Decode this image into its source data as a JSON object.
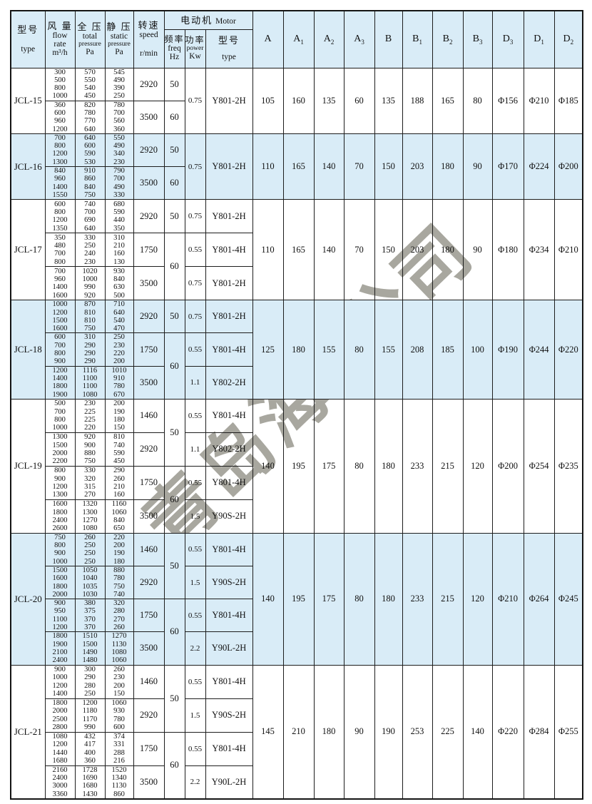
{
  "watermark": {
    "fragments": [
      {
        "text": "青岛海"
      },
      {
        "text": "公司"
      }
    ],
    "color": "#a8a79f"
  },
  "colors": {
    "band": "#d9ecf7",
    "border": "#1d1d1d",
    "watermark": "#a8a79f"
  },
  "table": {
    "header": {
      "col_type": {
        "zh": "型号",
        "en1": "type"
      },
      "col_flow": {
        "zh": "风 量",
        "en1": "flow",
        "en2": "rate",
        "unit": "m³/h"
      },
      "col_total": {
        "zh": "全 压",
        "en1": "total",
        "en2": "pressure",
        "unit": "Pa"
      },
      "col_static": {
        "zh": "静 压",
        "en1": "static",
        "en2": "pressure",
        "unit": "Pa"
      },
      "col_speed": {
        "zh": "转速",
        "en1": "speed",
        "unit": "r/min"
      },
      "motor_group": {
        "zh": "电动机",
        "en": "Motor"
      },
      "col_freq": {
        "zh": "频率",
        "en1": "freq",
        "unit": "Hz"
      },
      "col_power": {
        "zh": "功率",
        "en1": "power",
        "unit": "Kw"
      },
      "col_motor_type": {
        "zh": "型号",
        "en1": "type"
      },
      "dims": [
        {
          "b": "A",
          "s": ""
        },
        {
          "b": "A",
          "s": "1"
        },
        {
          "b": "A",
          "s": "2"
        },
        {
          "b": "A",
          "s": "3"
        },
        {
          "b": "B",
          "s": ""
        },
        {
          "b": "B",
          "s": "1"
        },
        {
          "b": "B",
          "s": "2"
        },
        {
          "b": "B",
          "s": "3"
        },
        {
          "b": "D",
          "s": "3"
        },
        {
          "b": "D",
          "s": "1"
        },
        {
          "b": "D",
          "s": "2"
        }
      ]
    },
    "rows": [
      {
        "model": "JCL-15",
        "shaded": false,
        "sub_blocks": [
          {
            "flow": [
              "300",
              "500",
              "800",
              "1000"
            ],
            "total": [
              "570",
              "550",
              "540",
              "450"
            ],
            "static": [
              "545",
              "490",
              "390",
              "250"
            ],
            "speed": "2920"
          },
          {
            "flow": [
              "360",
              "600",
              "960",
              "1200"
            ],
            "total": [
              "820",
              "780",
              "770",
              "640"
            ],
            "static": [
              "780",
              "700",
              "560",
              "360"
            ],
            "speed": "3500"
          }
        ],
        "freq": [
          {
            "value": "50",
            "span": 1
          },
          {
            "value": "60",
            "span": 1
          }
        ],
        "power": [
          {
            "value": "0.75",
            "span": 2
          }
        ],
        "motor": [
          {
            "value": "Y801-2H",
            "span": 2
          }
        ],
        "dims": [
          "105",
          "160",
          "135",
          "60",
          "135",
          "188",
          "165",
          "80",
          "Φ156",
          "Φ210",
          "Φ185"
        ]
      },
      {
        "model": "JCL-16",
        "shaded": true,
        "sub_blocks": [
          {
            "flow": [
              "700",
              "800",
              "1200",
              "1300"
            ],
            "total": [
              "640",
              "600",
              "590",
              "530"
            ],
            "static": [
              "550",
              "490",
              "340",
              "230"
            ],
            "speed": "2920"
          },
          {
            "flow": [
              "840",
              "960",
              "1400",
              "1550"
            ],
            "total": [
              "910",
              "860",
              "840",
              "750"
            ],
            "static": [
              "790",
              "700",
              "490",
              "330"
            ],
            "speed": "3500"
          }
        ],
        "freq": [
          {
            "value": "50",
            "span": 1
          },
          {
            "value": "60",
            "span": 1
          }
        ],
        "power": [
          {
            "value": "0.75",
            "span": 2
          }
        ],
        "motor": [
          {
            "value": "Y801-2H",
            "span": 2
          }
        ],
        "dims": [
          "110",
          "165",
          "140",
          "70",
          "150",
          "203",
          "180",
          "90",
          "Φ170",
          "Φ224",
          "Φ200"
        ]
      },
      {
        "model": "JCL-17",
        "shaded": false,
        "sub_blocks": [
          {
            "flow": [
              "600",
              "800",
              "1200",
              "1350"
            ],
            "total": [
              "740",
              "700",
              "690",
              "640"
            ],
            "static": [
              "680",
              "590",
              "440",
              "350"
            ],
            "speed": "2920"
          },
          {
            "flow": [
              "350",
              "480",
              "700",
              "800"
            ],
            "total": [
              "330",
              "250",
              "240",
              "230"
            ],
            "static": [
              "310",
              "210",
              "160",
              "130"
            ],
            "speed": "1750"
          },
          {
            "flow": [
              "700",
              "960",
              "1400",
              "1600"
            ],
            "total": [
              "1020",
              "1000",
              "990",
              "920"
            ],
            "static": [
              "930",
              "840",
              "630",
              "500"
            ],
            "speed": "3500"
          }
        ],
        "freq": [
          {
            "value": "50",
            "span": 1
          },
          {
            "value": "60",
            "span": 2
          }
        ],
        "power": [
          {
            "value": "0.75",
            "span": 1
          },
          {
            "value": "0.55",
            "span": 1
          },
          {
            "value": "0.75",
            "span": 1
          }
        ],
        "motor": [
          {
            "value": "Y801-2H",
            "span": 1
          },
          {
            "value": "Y801-4H",
            "span": 1
          },
          {
            "value": "Y801-2H",
            "span": 1
          }
        ],
        "dims": [
          "110",
          "165",
          "140",
          "70",
          "150",
          "203",
          "180",
          "90",
          "Φ180",
          "Φ234",
          "Φ210"
        ]
      },
      {
        "model": "JCL-18",
        "shaded": true,
        "sub_blocks": [
          {
            "flow": [
              "1000",
              "1200",
              "1500",
              "1600"
            ],
            "total": [
              "870",
              "810",
              "810",
              "750"
            ],
            "static": [
              "710",
              "640",
              "540",
              "470"
            ],
            "speed": "2920"
          },
          {
            "flow": [
              "600",
              "700",
              "800",
              "900"
            ],
            "total": [
              "310",
              "290",
              "290",
              "290"
            ],
            "static": [
              "250",
              "230",
              "220",
              "200"
            ],
            "speed": "1750"
          },
          {
            "flow": [
              "1200",
              "1400",
              "1800",
              "1900"
            ],
            "total": [
              "1116",
              "1100",
              "1100",
              "1080"
            ],
            "static": [
              "1010",
              "910",
              "780",
              "670"
            ],
            "speed": "3500"
          }
        ],
        "freq": [
          {
            "value": "50",
            "span": 1
          },
          {
            "value": "60",
            "span": 2
          }
        ],
        "power": [
          {
            "value": "0.75",
            "span": 1
          },
          {
            "value": "0.55",
            "span": 1
          },
          {
            "value": "1.1",
            "span": 1
          }
        ],
        "motor": [
          {
            "value": "Y801-2H",
            "span": 1
          },
          {
            "value": "Y801-4H",
            "span": 1
          },
          {
            "value": "Y802-2H",
            "span": 1
          }
        ],
        "dims": [
          "125",
          "180",
          "155",
          "80",
          "155",
          "208",
          "185",
          "100",
          "Φ190",
          "Φ244",
          "Φ220"
        ]
      },
      {
        "model": "JCL-19",
        "shaded": false,
        "sub_blocks": [
          {
            "flow": [
              "500",
              "700",
              "800",
              "1000"
            ],
            "total": [
              "230",
              "225",
              "225",
              "220"
            ],
            "static": [
              "200",
              "190",
              "180",
              "150"
            ],
            "speed": "1460"
          },
          {
            "flow": [
              "1300",
              "1500",
              "2000",
              "2200"
            ],
            "total": [
              "920",
              "900",
              "880",
              "750"
            ],
            "static": [
              "810",
              "740",
              "590",
              "450"
            ],
            "speed": "2920"
          },
          {
            "flow": [
              "800",
              "900",
              "1200",
              "1300"
            ],
            "total": [
              "330",
              "320",
              "315",
              "270"
            ],
            "static": [
              "290",
              "260",
              "210",
              "160"
            ],
            "speed": "1750"
          },
          {
            "flow": [
              "1600",
              "1800",
              "2400",
              "2600"
            ],
            "total": [
              "1320",
              "1300",
              "1270",
              "1080"
            ],
            "static": [
              "1160",
              "1060",
              "840",
              "650"
            ],
            "speed": "3500"
          }
        ],
        "freq": [
          {
            "value": "50",
            "span": 2
          },
          {
            "value": "60",
            "span": 2
          }
        ],
        "power": [
          {
            "value": "0.55",
            "span": 1
          },
          {
            "value": "1.1",
            "span": 1
          },
          {
            "value": "0.55",
            "span": 1
          },
          {
            "value": "1.5",
            "span": 1
          }
        ],
        "motor": [
          {
            "value": "Y801-4H",
            "span": 1
          },
          {
            "value": "Y802-2H",
            "span": 1
          },
          {
            "value": "Y801-4H",
            "span": 1
          },
          {
            "value": "Y90S-2H",
            "span": 1
          }
        ],
        "dims": [
          "140",
          "195",
          "175",
          "80",
          "180",
          "233",
          "215",
          "120",
          "Φ200",
          "Φ254",
          "Φ235"
        ]
      },
      {
        "model": "JCL-20",
        "shaded": true,
        "sub_blocks": [
          {
            "flow": [
              "750",
              "800",
              "900",
              "1000"
            ],
            "total": [
              "260",
              "250",
              "250",
              "250"
            ],
            "static": [
              "220",
              "200",
              "190",
              "180"
            ],
            "speed": "1460"
          },
          {
            "flow": [
              "1500",
              "1600",
              "1800",
              "2000"
            ],
            "total": [
              "1050",
              "1040",
              "1035",
              "1030"
            ],
            "static": [
              "880",
              "780",
              "750",
              "740"
            ],
            "speed": "2920"
          },
          {
            "flow": [
              "900",
              "950",
              "1100",
              "1200"
            ],
            "total": [
              "380",
              "375",
              "370",
              "370"
            ],
            "static": [
              "320",
              "280",
              "270",
              "260"
            ],
            "speed": "1750"
          },
          {
            "flow": [
              "1800",
              "1900",
              "2100",
              "2400"
            ],
            "total": [
              "1510",
              "1500",
              "1490",
              "1480"
            ],
            "static": [
              "1270",
              "1130",
              "1080",
              "1060"
            ],
            "speed": "3500"
          }
        ],
        "freq": [
          {
            "value": "50",
            "span": 2
          },
          {
            "value": "60",
            "span": 2
          }
        ],
        "power": [
          {
            "value": "0.55",
            "span": 1
          },
          {
            "value": "1.5",
            "span": 1
          },
          {
            "value": "0.55",
            "span": 1
          },
          {
            "value": "2.2",
            "span": 1
          }
        ],
        "motor": [
          {
            "value": "Y801-4H",
            "span": 1
          },
          {
            "value": "Y90S-2H",
            "span": 1
          },
          {
            "value": "Y801-4H",
            "span": 1
          },
          {
            "value": "Y90L-2H",
            "span": 1
          }
        ],
        "dims": [
          "140",
          "195",
          "175",
          "80",
          "180",
          "233",
          "215",
          "120",
          "Φ210",
          "Φ264",
          "Φ245"
        ]
      },
      {
        "model": "JCL-21",
        "shaded": false,
        "sub_blocks": [
          {
            "flow": [
              "900",
              "1000",
              "1200",
              "1400"
            ],
            "total": [
              "300",
              "290",
              "280",
              "250"
            ],
            "static": [
              "260",
              "230",
              "200",
              "150"
            ],
            "speed": "1460"
          },
          {
            "flow": [
              "1800",
              "2000",
              "2500",
              "2800"
            ],
            "total": [
              "1200",
              "1180",
              "1170",
              "990"
            ],
            "static": [
              "1060",
              "930",
              "780",
              "600"
            ],
            "speed": "2920"
          },
          {
            "flow": [
              "1080",
              "1200",
              "1440",
              "1680"
            ],
            "total": [
              "432",
              "417",
              "400",
              "360"
            ],
            "static": [
              "374",
              "331",
              "288",
              "216"
            ],
            "speed": "1750"
          },
          {
            "flow": [
              "2160",
              "2400",
              "3000",
              "3360"
            ],
            "total": [
              "1728",
              "1690",
              "1680",
              "1430"
            ],
            "static": [
              "1520",
              "1340",
              "1130",
              "860"
            ],
            "speed": "3500"
          }
        ],
        "freq": [
          {
            "value": "50",
            "span": 2
          },
          {
            "value": "60",
            "span": 2
          }
        ],
        "power": [
          {
            "value": "0.55",
            "span": 1
          },
          {
            "value": "1.5",
            "span": 1
          },
          {
            "value": "0.55",
            "span": 1
          },
          {
            "value": "2.2",
            "span": 1
          }
        ],
        "motor": [
          {
            "value": "Y801-4H",
            "span": 1
          },
          {
            "value": "Y90S-2H",
            "span": 1
          },
          {
            "value": "Y801-4H",
            "span": 1
          },
          {
            "value": "Y90L-2H",
            "span": 1
          }
        ],
        "dims": [
          "145",
          "210",
          "180",
          "90",
          "190",
          "253",
          "225",
          "140",
          "Φ220",
          "Φ284",
          "Φ255"
        ]
      }
    ]
  }
}
